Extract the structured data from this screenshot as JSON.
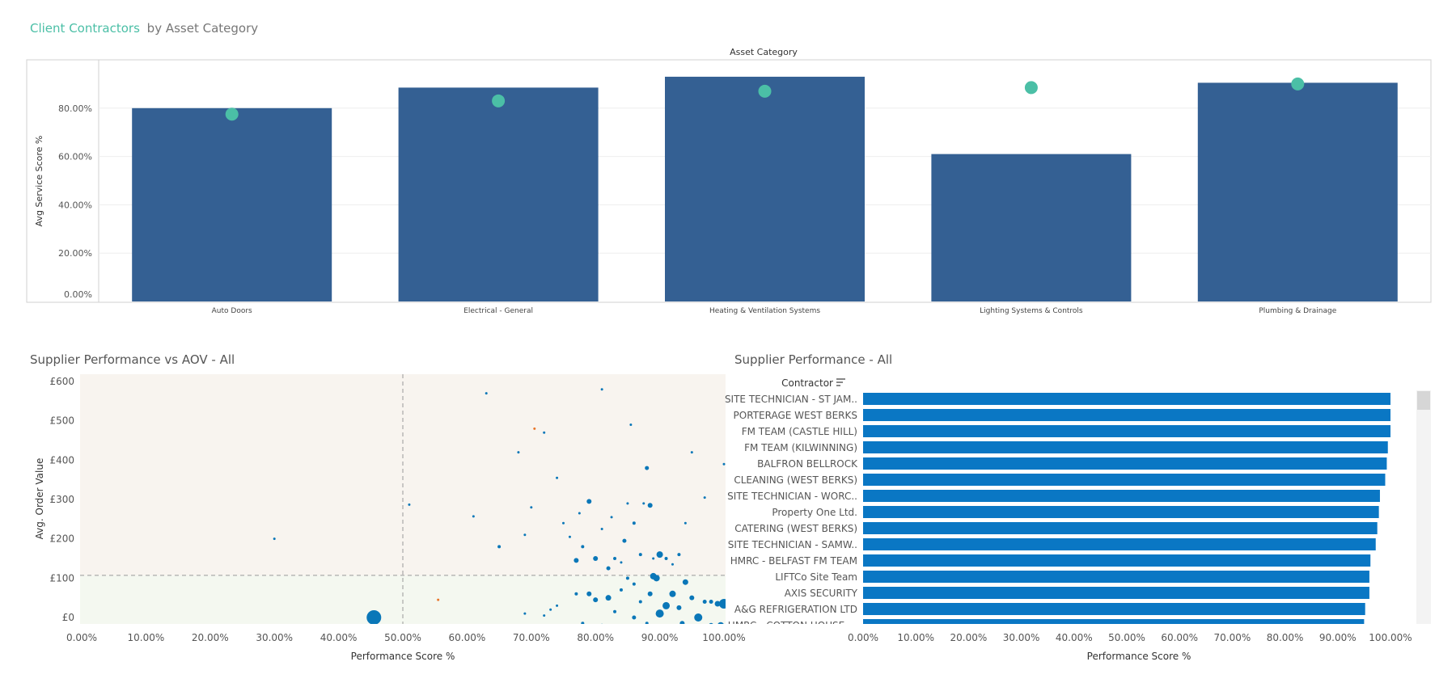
{
  "header": {
    "title_accent": "Client Contractors",
    "title_rest": "by Asset Category"
  },
  "chart_data": [
    {
      "type": "bar",
      "title": "Asset Category",
      "ylabel": "Avg Service Score %",
      "ylim": [
        0,
        100
      ],
      "y_ticks": [
        "0.00%",
        "20.00%",
        "40.00%",
        "60.00%",
        "80.00%"
      ],
      "y_tick_values": [
        0,
        20,
        40,
        60,
        80
      ],
      "categories": [
        "Auto Doors",
        "Electrical - General",
        "Heating & Ventilation Systems",
        "Lighting Systems & Controls",
        "Plumbing & Drainage"
      ],
      "values": [
        80,
        88.5,
        93,
        61,
        90.5
      ],
      "markers": [
        77.5,
        83,
        87,
        88.5,
        90
      ],
      "bar_color": "#346093",
      "marker_color": "#4bbfa6",
      "grid": true
    },
    {
      "type": "scatter",
      "title": "Supplier Performance vs AOV - All",
      "xlabel": "Performance Score %",
      "ylabel": "Avg. Order Value",
      "xlim": [
        0,
        100
      ],
      "ylim": [
        0,
        600
      ],
      "x_ticks": [
        "0.00%",
        "10.00%",
        "20.00%",
        "30.00%",
        "40.00%",
        "50.00%",
        "60.00%",
        "70.00%",
        "80.00%",
        "90.00%",
        "100.00%"
      ],
      "x_tick_values": [
        0,
        10,
        20,
        30,
        40,
        50,
        60,
        70,
        80,
        90,
        100
      ],
      "y_ticks": [
        "£0",
        "£100",
        "£200",
        "£300",
        "£400",
        "£500",
        "£600"
      ],
      "y_tick_values": [
        0,
        100,
        200,
        300,
        400,
        500,
        600
      ],
      "ref_x": 50,
      "ref_y": 107,
      "point_color": "#0a77b8",
      "points": [
        {
          "x": 45.5,
          "y": 0,
          "s": 9
        },
        {
          "x": 30,
          "y": 200,
          "s": 1.5
        },
        {
          "x": 51,
          "y": 287,
          "s": 1.5
        },
        {
          "x": 61,
          "y": 257,
          "s": 1.5
        },
        {
          "x": 63,
          "y": 570,
          "s": 1.5
        },
        {
          "x": 65,
          "y": 180,
          "s": 2
        },
        {
          "x": 68,
          "y": 420,
          "s": 1.5
        },
        {
          "x": 69,
          "y": 210,
          "s": 1.5
        },
        {
          "x": 70,
          "y": 280,
          "s": 1.5
        },
        {
          "x": 70.5,
          "y": 480,
          "s": 1.5,
          "c": "#e8762b"
        },
        {
          "x": 72,
          "y": 470,
          "s": 1.5
        },
        {
          "x": 74,
          "y": 355,
          "s": 1.5
        },
        {
          "x": 75,
          "y": 240,
          "s": 1.5
        },
        {
          "x": 76,
          "y": 205,
          "s": 1.5
        },
        {
          "x": 77,
          "y": 145,
          "s": 3
        },
        {
          "x": 77.5,
          "y": 265,
          "s": 1.5
        },
        {
          "x": 78,
          "y": 180,
          "s": 2
        },
        {
          "x": 79,
          "y": 295,
          "s": 3
        },
        {
          "x": 80,
          "y": 150,
          "s": 3
        },
        {
          "x": 81,
          "y": 580,
          "s": 1.5
        },
        {
          "x": 81,
          "y": 225,
          "s": 1.5
        },
        {
          "x": 82,
          "y": 125,
          "s": 2.5
        },
        {
          "x": 82.5,
          "y": 255,
          "s": 1.5
        },
        {
          "x": 83,
          "y": 150,
          "s": 2
        },
        {
          "x": 84,
          "y": 140,
          "s": 1.5
        },
        {
          "x": 84.5,
          "y": 195,
          "s": 2.5
        },
        {
          "x": 85,
          "y": 290,
          "s": 1.5
        },
        {
          "x": 85.5,
          "y": 490,
          "s": 1.5
        },
        {
          "x": 86,
          "y": 240,
          "s": 2
        },
        {
          "x": 87,
          "y": 160,
          "s": 2
        },
        {
          "x": 87.5,
          "y": 290,
          "s": 1.5
        },
        {
          "x": 88,
          "y": 380,
          "s": 2.5
        },
        {
          "x": 88.5,
          "y": 285,
          "s": 3
        },
        {
          "x": 89,
          "y": 150,
          "s": 1.5
        },
        {
          "x": 90,
          "y": 160,
          "s": 4
        },
        {
          "x": 91,
          "y": 150,
          "s": 2
        },
        {
          "x": 92,
          "y": 135,
          "s": 1.5
        },
        {
          "x": 93,
          "y": 160,
          "s": 2
        },
        {
          "x": 94,
          "y": 240,
          "s": 1.5
        },
        {
          "x": 95,
          "y": 420,
          "s": 1.5
        },
        {
          "x": 97,
          "y": 305,
          "s": 1.5
        },
        {
          "x": 100,
          "y": 390,
          "s": 1.5
        },
        {
          "x": 89,
          "y": 105,
          "s": 4
        },
        {
          "x": 89.5,
          "y": 100,
          "s": 4
        },
        {
          "x": 85,
          "y": 100,
          "s": 2
        },
        {
          "x": 86,
          "y": 85,
          "s": 2
        },
        {
          "x": 77,
          "y": 60,
          "s": 2
        },
        {
          "x": 79,
          "y": 60,
          "s": 3
        },
        {
          "x": 80,
          "y": 45,
          "s": 3
        },
        {
          "x": 82,
          "y": 50,
          "s": 3.5
        },
        {
          "x": 84,
          "y": 70,
          "s": 2
        },
        {
          "x": 87,
          "y": 40,
          "s": 2
        },
        {
          "x": 88.5,
          "y": 60,
          "s": 3
        },
        {
          "x": 90,
          "y": 10,
          "s": 5
        },
        {
          "x": 91,
          "y": 30,
          "s": 4.5
        },
        {
          "x": 92,
          "y": 60,
          "s": 4
        },
        {
          "x": 93,
          "y": 25,
          "s": 3
        },
        {
          "x": 94,
          "y": 90,
          "s": 3.5
        },
        {
          "x": 95,
          "y": 50,
          "s": 3
        },
        {
          "x": 96,
          "y": 0,
          "s": 5
        },
        {
          "x": 97,
          "y": 40,
          "s": 2.5
        },
        {
          "x": 98,
          "y": 40,
          "s": 2.5
        },
        {
          "x": 99,
          "y": 35,
          "s": 3.5
        },
        {
          "x": 100,
          "y": 35,
          "s": 6
        },
        {
          "x": 74,
          "y": 30,
          "s": 1.5
        },
        {
          "x": 73,
          "y": 20,
          "s": 1.5
        },
        {
          "x": 72,
          "y": 5,
          "s": 1.5
        },
        {
          "x": 69,
          "y": 10,
          "s": 1.5
        },
        {
          "x": 66,
          "y": -20,
          "s": 1.5
        },
        {
          "x": 55.5,
          "y": 45,
          "s": 1.5,
          "c": "#e8762b"
        },
        {
          "x": 60,
          "y": -20,
          "s": 1.5
        },
        {
          "x": 83,
          "y": 15,
          "s": 2
        },
        {
          "x": 86,
          "y": 0,
          "s": 2.5
        },
        {
          "x": 88,
          "y": -15,
          "s": 2
        },
        {
          "x": 93.5,
          "y": -15,
          "s": 3
        },
        {
          "x": 98,
          "y": -20,
          "s": 3
        },
        {
          "x": 99.5,
          "y": -20,
          "s": 4
        },
        {
          "x": 81,
          "y": -20,
          "s": 2
        },
        {
          "x": 78,
          "y": -15,
          "s": 2
        }
      ]
    },
    {
      "type": "bar",
      "orientation": "horizontal",
      "title": "Supplier Performance - All",
      "row_header": "Contractor",
      "xlabel": "Performance Score %",
      "xlim": [
        0,
        100
      ],
      "x_ticks": [
        "0.00%",
        "10.00%",
        "20.00%",
        "30.00%",
        "40.00%",
        "50.00%",
        "60.00%",
        "70.00%",
        "80.00%",
        "90.00%",
        "100.00%"
      ],
      "x_tick_values": [
        0,
        10,
        20,
        30,
        40,
        50,
        60,
        70,
        80,
        90,
        100
      ],
      "bar_color": "#0a77c4",
      "categories": [
        "SITE TECHNICIAN - ST JAM..",
        "PORTERAGE WEST BERKS",
        "FM TEAM (CASTLE HILL)",
        "FM TEAM (KILWINNING)",
        "BALFRON BELLROCK",
        "CLEANING (WEST BERKS)",
        "SITE TECHNICIAN - WORC..",
        "Property One Ltd.",
        "CATERING (WEST BERKS)",
        "SITE TECHNICIAN - SAMW..",
        "HMRC - BELFAST FM TEAM",
        "LIFTCo Site Team",
        "AXIS SECURITY",
        "A&G REFRIGERATION LTD",
        "HMRC - COTTON HOUSE -.."
      ],
      "values": [
        100,
        100,
        100,
        99.5,
        99.3,
        99,
        98,
        97.8,
        97.5,
        97.2,
        96.2,
        96,
        96,
        95.2,
        95
      ]
    }
  ]
}
